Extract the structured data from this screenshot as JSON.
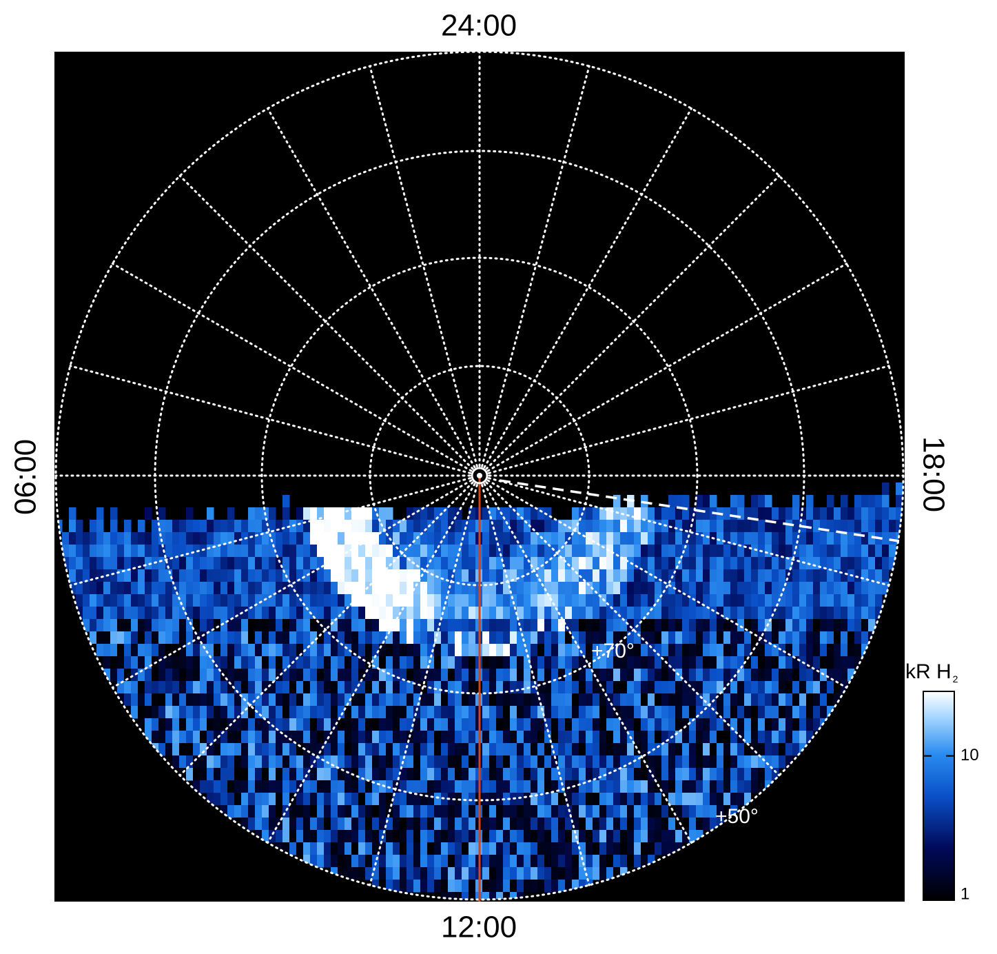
{
  "labels": {
    "top": "24:00",
    "bottom": "12:00",
    "left": "06:00",
    "right": "18:00",
    "lat_inner": "+70°",
    "lat_outer": "+50°"
  },
  "colorbar": {
    "title": "kR H",
    "title_sub": "2",
    "scale": "log",
    "lim": [
      1,
      28
    ],
    "ticks": [
      1,
      10
    ]
  }
}
